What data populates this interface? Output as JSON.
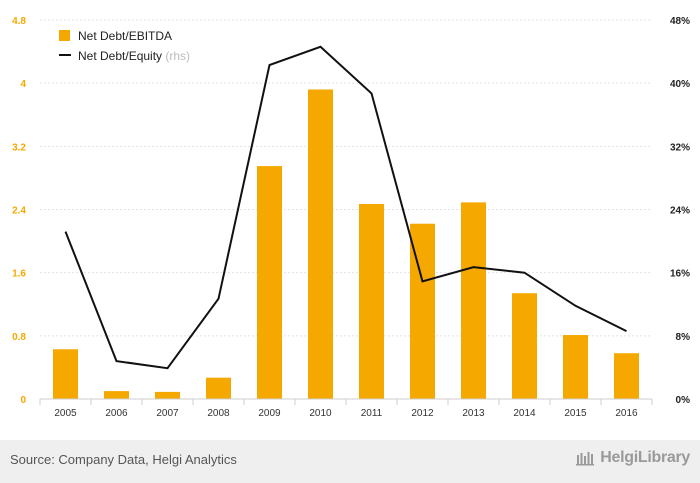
{
  "chart_data": {
    "type": "bar+line",
    "categories": [
      "2005",
      "2006",
      "2007",
      "2008",
      "2009",
      "2010",
      "2011",
      "2012",
      "2013",
      "2014",
      "2015",
      "2016"
    ],
    "series": [
      {
        "name": "Net Debt/EBITDA",
        "type": "bar",
        "axis": "left",
        "color": "#f5a800",
        "values": [
          0.63,
          0.1,
          0.09,
          0.27,
          2.95,
          3.92,
          2.47,
          2.22,
          2.49,
          1.34,
          0.81,
          0.58
        ]
      },
      {
        "name": "Net Debt/Equity",
        "name_suffix": "(rhs)",
        "type": "line",
        "axis": "right",
        "color": "#111111",
        "values": [
          21.2,
          4.8,
          3.9,
          12.7,
          42.3,
          44.6,
          38.7,
          14.9,
          16.7,
          16.0,
          11.8,
          8.6
        ]
      }
    ],
    "y_left": {
      "ylim": [
        0,
        4.8
      ],
      "ticks": [
        "0",
        "0.8",
        "1.6",
        "2.4",
        "3.2",
        "4",
        "4.8"
      ]
    },
    "y_right": {
      "ylim": [
        0,
        48
      ],
      "ticks": [
        "0%",
        "8%",
        "16%",
        "24%",
        "32%",
        "40%",
        "48%"
      ]
    },
    "legend": "top-left",
    "grid": true
  },
  "footer": {
    "source": "Source: Company Data, Helgi Analytics",
    "logo": "HelgiLibrary"
  }
}
